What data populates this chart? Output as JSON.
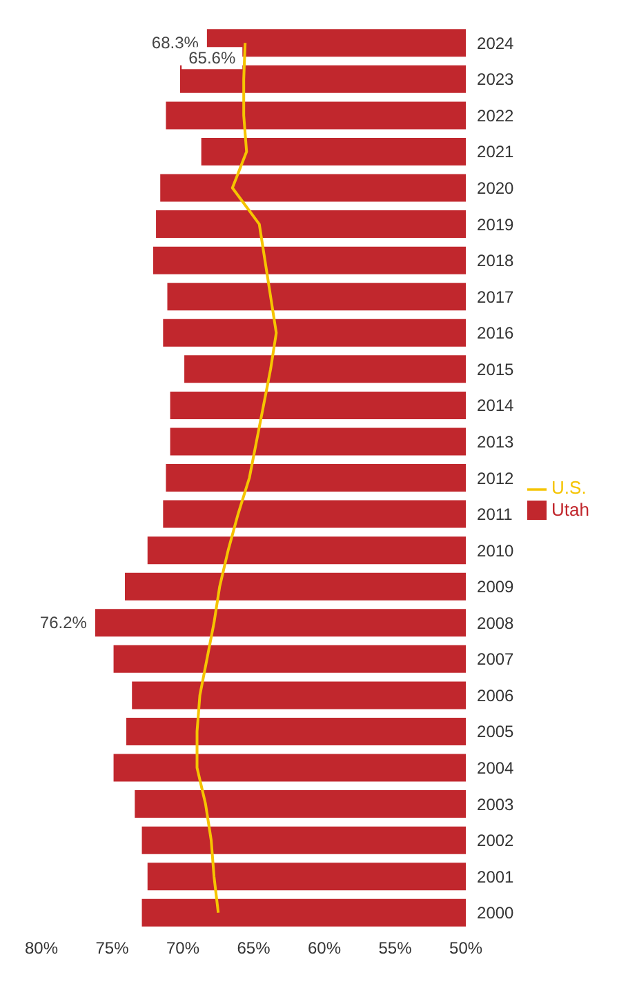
{
  "chart_data": {
    "type": "bar",
    "orientation": "horizontal",
    "categories": [
      "2024",
      "2023",
      "2022",
      "2021",
      "2020",
      "2019",
      "2018",
      "2017",
      "2016",
      "2015",
      "2014",
      "2013",
      "2012",
      "2011",
      "2010",
      "2009",
      "2008",
      "2007",
      "2006",
      "2005",
      "2004",
      "2003",
      "2002",
      "2001",
      "2000"
    ],
    "series": [
      {
        "name": "Utah",
        "color": "#c1272d",
        "values": [
          68.3,
          70.2,
          71.2,
          68.7,
          71.6,
          71.9,
          72.1,
          71.1,
          71.4,
          69.9,
          70.9,
          70.9,
          71.2,
          71.4,
          72.5,
          74.1,
          76.2,
          74.9,
          73.6,
          74.0,
          74.9,
          73.4,
          72.9,
          72.5,
          72.9
        ],
        "value_labels": [
          "68.3%",
          null,
          null,
          null,
          null,
          null,
          null,
          null,
          null,
          null,
          null,
          null,
          null,
          null,
          null,
          null,
          "76.2%",
          null,
          null,
          null,
          null,
          null,
          null,
          null,
          null
        ]
      },
      {
        "name": "U.S.",
        "type": "line",
        "color": "#f5c400",
        "values": [
          65.6,
          65.7,
          65.7,
          65.5,
          66.5,
          64.6,
          64.2,
          63.8,
          63.4,
          63.8,
          64.3,
          64.8,
          65.3,
          66.1,
          66.8,
          67.4,
          67.8,
          68.3,
          68.8,
          69.0,
          69.0,
          68.4,
          68.0,
          67.8,
          67.5
        ],
        "value_labels": [
          "65.6%",
          null,
          null,
          null,
          null,
          null,
          null,
          null,
          null,
          null,
          null,
          null,
          null,
          null,
          null,
          null,
          null,
          null,
          null,
          null,
          null,
          null,
          null,
          null,
          null
        ]
      }
    ],
    "xlim": [
      80,
      50
    ],
    "xticks": [
      {
        "value": 80,
        "label": "80%"
      },
      {
        "value": 75,
        "label": "75%"
      },
      {
        "value": 70,
        "label": "70%"
      },
      {
        "value": 65,
        "label": "65%"
      },
      {
        "value": 60,
        "label": "60%"
      },
      {
        "value": 55,
        "label": "55%"
      },
      {
        "value": 50,
        "label": "50%"
      }
    ],
    "legend": "right",
    "grid": false,
    "marker": "none"
  }
}
